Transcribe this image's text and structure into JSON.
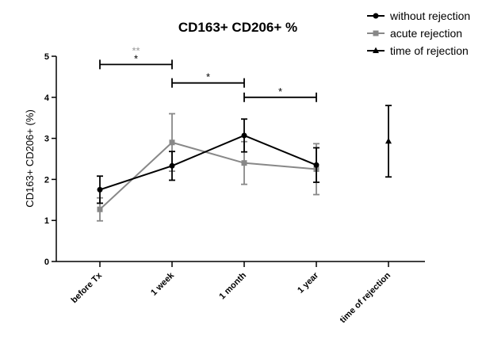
{
  "chart_data": {
    "type": "line",
    "title": "CD163+ CD206+ %",
    "xlabel": "",
    "ylabel": "CD163+ CD206+ (%)",
    "categories": [
      "before Tx",
      "1 week",
      "1 month",
      "1 year",
      "time of rejection"
    ],
    "yticks": [
      "0",
      "1",
      "2",
      "3",
      "4",
      "5"
    ],
    "ylim": [
      0,
      5
    ],
    "legend_position": "top-right",
    "series": [
      {
        "name": "without rejection",
        "color": "#000000",
        "marker": "circle",
        "x": [
          0,
          1,
          2,
          3
        ],
        "y": [
          1.75,
          2.33,
          3.07,
          2.35
        ],
        "err": [
          0.33,
          0.35,
          0.4,
          0.42
        ]
      },
      {
        "name": "acute rejection",
        "color": "#888888",
        "marker": "square",
        "x": [
          0,
          1,
          2,
          3
        ],
        "y": [
          1.27,
          2.9,
          2.4,
          2.25
        ],
        "err": [
          0.28,
          0.7,
          0.52,
          0.62
        ]
      },
      {
        "name": "time of rejection",
        "color": "#000000",
        "marker": "triangle",
        "x": [
          4
        ],
        "y": [
          2.93
        ],
        "err": [
          0.87
        ]
      }
    ],
    "annotations": [
      {
        "from": 0,
        "to": 1,
        "level": 4.8,
        "labels": [
          {
            "text": "**",
            "color": "#999999"
          },
          {
            "text": "*",
            "color": "#000000"
          }
        ]
      },
      {
        "from": 1,
        "to": 2,
        "level": 4.35,
        "labels": [
          {
            "text": "*",
            "color": "#000000"
          }
        ]
      },
      {
        "from": 2,
        "to": 3,
        "level": 4.0,
        "labels": [
          {
            "text": "*",
            "color": "#000000"
          }
        ]
      }
    ]
  }
}
